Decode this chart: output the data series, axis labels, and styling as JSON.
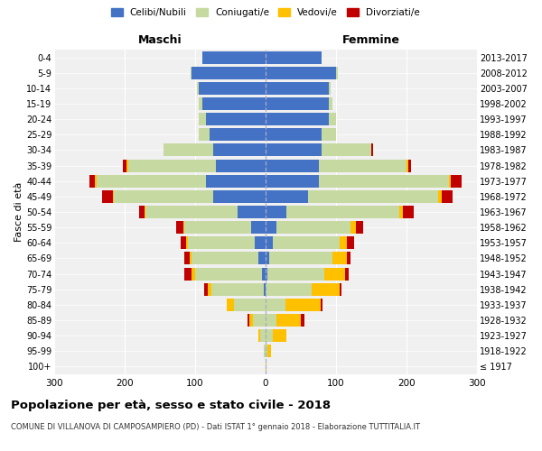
{
  "age_groups": [
    "100+",
    "95-99",
    "90-94",
    "85-89",
    "80-84",
    "75-79",
    "70-74",
    "65-69",
    "60-64",
    "55-59",
    "50-54",
    "45-49",
    "40-44",
    "35-39",
    "30-34",
    "25-29",
    "20-24",
    "15-19",
    "10-14",
    "5-9",
    "0-4"
  ],
  "birth_years": [
    "≤ 1917",
    "1918-1922",
    "1923-1927",
    "1928-1932",
    "1933-1937",
    "1938-1942",
    "1943-1947",
    "1948-1952",
    "1953-1957",
    "1958-1962",
    "1963-1967",
    "1968-1972",
    "1973-1977",
    "1978-1982",
    "1983-1987",
    "1988-1992",
    "1993-1997",
    "1998-2002",
    "2003-2007",
    "2008-2012",
    "2013-2017"
  ],
  "maschi": {
    "celibi": [
      0,
      0,
      0,
      0,
      0,
      2,
      5,
      10,
      15,
      20,
      40,
      75,
      85,
      70,
      75,
      80,
      85,
      90,
      95,
      105,
      90
    ],
    "coniugati": [
      0,
      2,
      8,
      18,
      45,
      75,
      95,
      95,
      95,
      95,
      130,
      140,
      155,
      125,
      70,
      15,
      10,
      5,
      2,
      2,
      0
    ],
    "vedovi": [
      0,
      0,
      2,
      5,
      10,
      5,
      5,
      3,
      3,
      2,
      2,
      2,
      2,
      2,
      0,
      0,
      0,
      0,
      0,
      0,
      0
    ],
    "divorziati": [
      0,
      0,
      0,
      3,
      0,
      5,
      10,
      8,
      8,
      10,
      8,
      15,
      8,
      5,
      0,
      0,
      0,
      0,
      0,
      0,
      0
    ]
  },
  "femmine": {
    "nubili": [
      0,
      0,
      0,
      0,
      0,
      0,
      3,
      5,
      10,
      15,
      30,
      60,
      75,
      75,
      80,
      80,
      90,
      90,
      90,
      100,
      80
    ],
    "coniugate": [
      0,
      3,
      10,
      15,
      28,
      65,
      80,
      90,
      95,
      105,
      160,
      185,
      185,
      125,
      70,
      20,
      10,
      5,
      2,
      2,
      0
    ],
    "vedove": [
      1,
      5,
      20,
      35,
      50,
      40,
      30,
      20,
      10,
      8,
      5,
      5,
      3,
      2,
      0,
      0,
      0,
      0,
      0,
      0,
      0
    ],
    "divorziate": [
      0,
      0,
      0,
      5,
      3,
      3,
      5,
      5,
      10,
      10,
      15,
      15,
      15,
      5,
      2,
      0,
      0,
      0,
      0,
      0,
      0
    ]
  },
  "colors": {
    "celibi": "#4472C4",
    "coniugati": "#c5d9a0",
    "vedovi": "#ffc000",
    "divorziati": "#c00000"
  },
  "xlim": 300,
  "title": "Popolazione per età, sesso e stato civile - 2018",
  "subtitle": "COMUNE DI VILLANOVA DI CAMPOSAMPIERO (PD) - Dati ISTAT 1° gennaio 2018 - Elaborazione TUTTITALIA.IT",
  "ylabel_left": "Fasce di età",
  "xlabel_maschi": "Maschi",
  "xlabel_femmine": "Femmine",
  "legend_labels": [
    "Celibi/Nubili",
    "Coniugati/e",
    "Vedovi/e",
    "Divorziati/e"
  ],
  "bg_color": "#ffffff",
  "ax_bg_color": "#f0f0f0"
}
